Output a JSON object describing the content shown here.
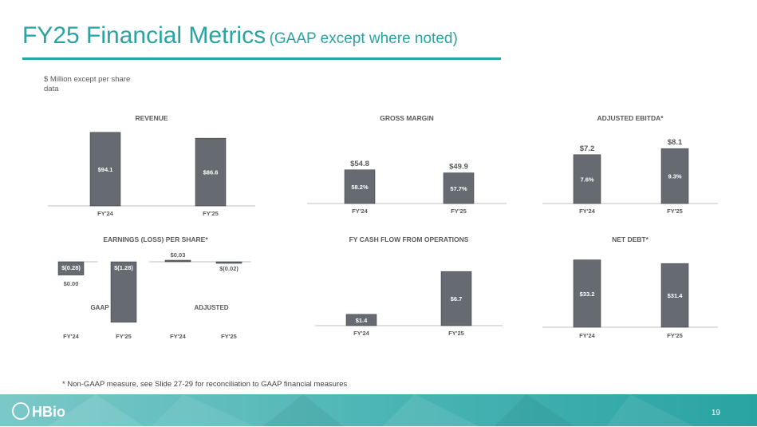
{
  "title": {
    "main": "FY25 Financial Metrics",
    "sub": "(GAAP except where noted)"
  },
  "units_note": "$ Million except per share data",
  "footnote": "* Non-GAAP measure, see Slide 27-29 for reconciliation to GAAP financial measures",
  "page_number": "19",
  "logo_text": "HBio",
  "colors": {
    "accent": "#2aa3a3",
    "bar": "#656b70",
    "text": "#595959"
  },
  "chart_data": [
    {
      "id": "revenue",
      "type": "bar",
      "title": "REVENUE",
      "categories": [
        "FY'24",
        "FY'25"
      ],
      "values": [
        94.1,
        86.6
      ],
      "labels": [
        "$94.1",
        "$86.6"
      ],
      "ylim": [
        0,
        100
      ]
    },
    {
      "id": "gross_margin",
      "type": "bar",
      "title": "GROSS MARGIN",
      "categories": [
        "FY'24",
        "FY'25"
      ],
      "values": [
        54.8,
        49.9
      ],
      "labels": [
        "58.2%",
        "57.7%"
      ],
      "top_labels": [
        "$54.8",
        "$49.9"
      ],
      "ylim": [
        0,
        100
      ]
    },
    {
      "id": "adjusted_ebitda",
      "type": "bar",
      "title": "ADJUSTED EBITDA*",
      "categories": [
        "FY'24",
        "FY'25"
      ],
      "values": [
        7.2,
        8.1
      ],
      "labels": [
        "7.6%",
        "9.3%"
      ],
      "top_labels": [
        "$7.2",
        "$8.1"
      ],
      "ylim": [
        0,
        10
      ]
    },
    {
      "id": "eps",
      "type": "bar",
      "title": "EARNINGS (LOSS) PER SHARE*",
      "categories": [
        "FY'24",
        "FY'25",
        "FY'24",
        "FY'25"
      ],
      "groups": [
        "GAAP",
        "ADJUSTED"
      ],
      "values": [
        -0.28,
        -1.28,
        0.03,
        -0.02
      ],
      "labels": [
        "$(0.28)",
        "$(1.28)",
        "$0.03",
        "$(0.02)"
      ],
      "zero_label": "$0.00",
      "ylim": [
        -1.3,
        0.1
      ]
    },
    {
      "id": "cash_flow",
      "type": "bar",
      "title": "FY CASH FLOW FROM OPERATIONS",
      "categories": [
        "FY'24",
        "FY'25"
      ],
      "values": [
        1.4,
        6.7
      ],
      "labels": [
        "$1.4",
        "$6.7"
      ],
      "ylim": [
        0,
        8
      ]
    },
    {
      "id": "net_debt",
      "type": "bar",
      "title": "NET DEBT*",
      "categories": [
        "FY'24",
        "FY'25"
      ],
      "values": [
        33.2,
        31.4
      ],
      "labels": [
        "$33.2",
        "$31.4"
      ],
      "ylim": [
        0,
        35
      ]
    }
  ]
}
